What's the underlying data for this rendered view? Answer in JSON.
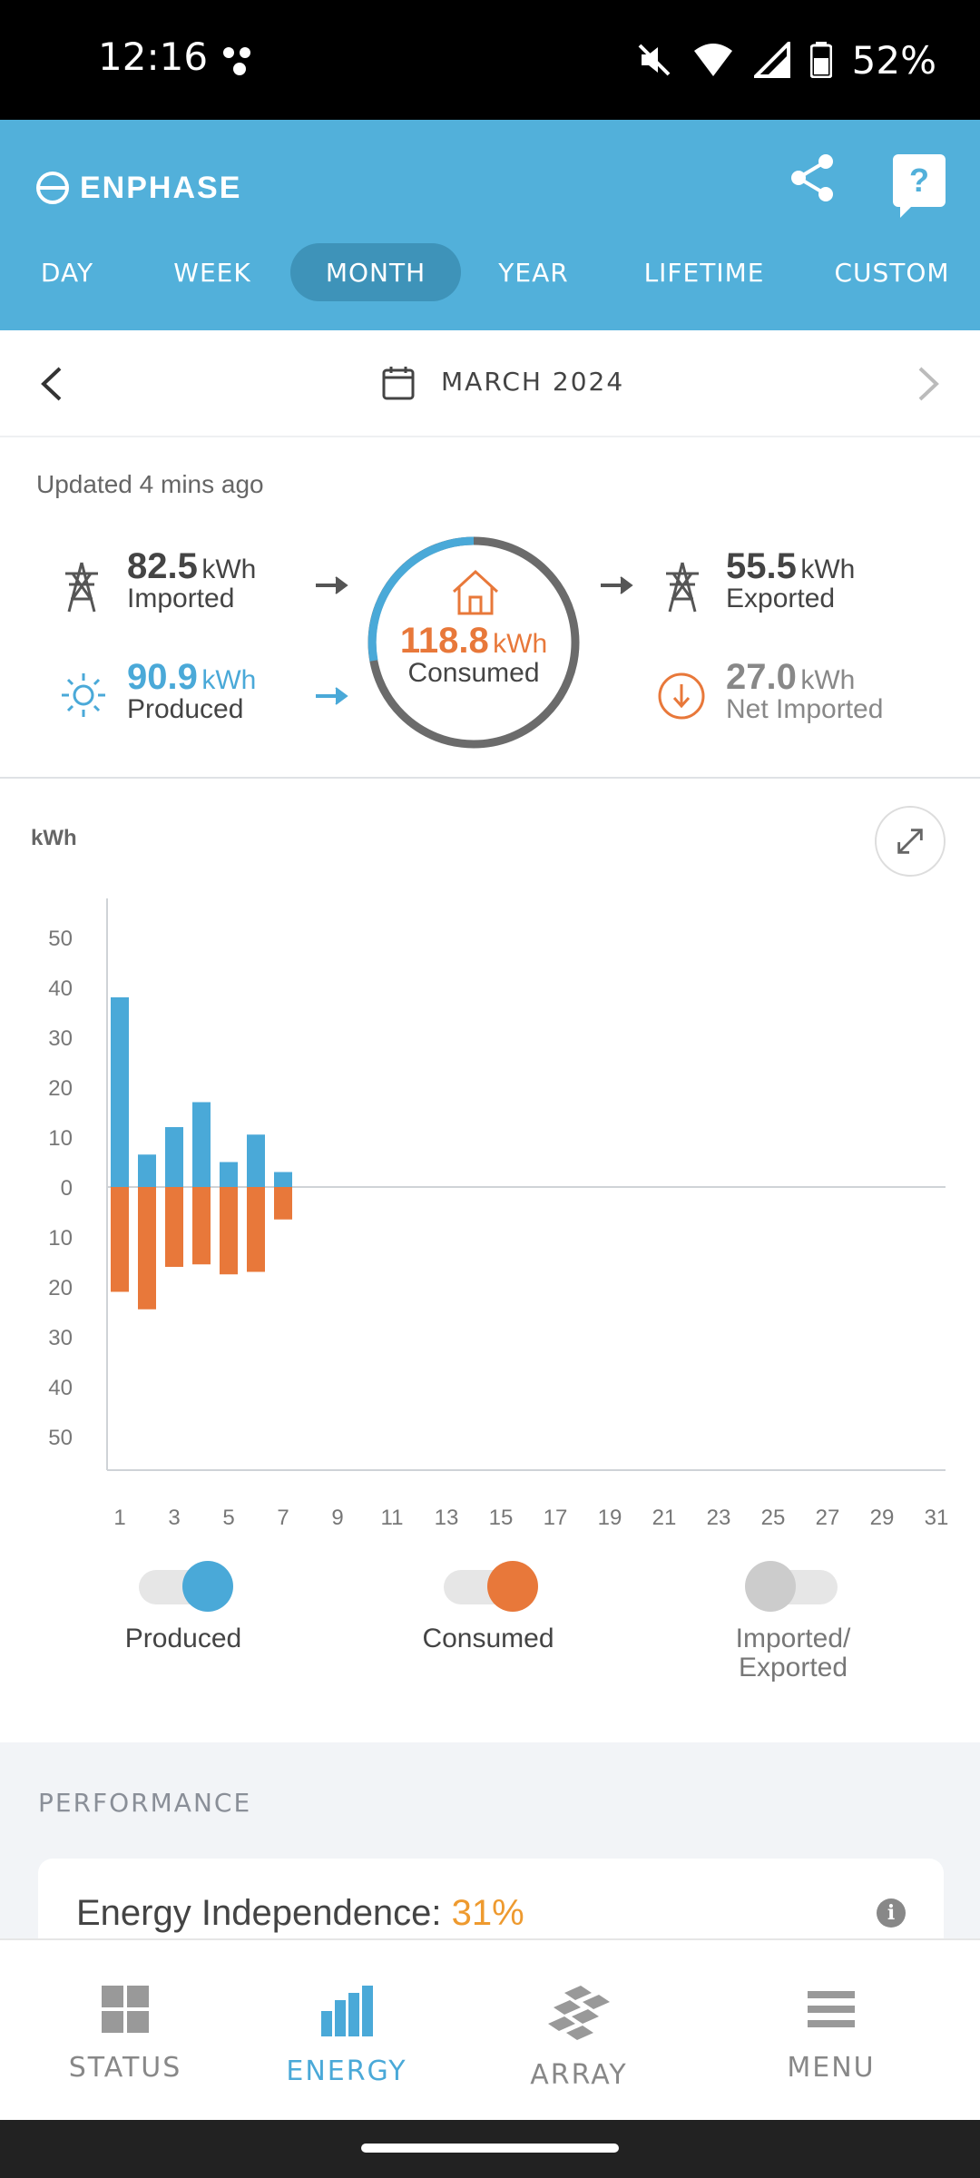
{
  "status_bar": {
    "time": "12:16",
    "battery": "52%"
  },
  "header": {
    "brand": "ENPHASE",
    "tabs": [
      {
        "label": "DAY"
      },
      {
        "label": "WEEK"
      },
      {
        "label": "MONTH",
        "active": true
      },
      {
        "label": "YEAR"
      },
      {
        "label": "LIFETIME"
      },
      {
        "label": "CUSTOM"
      }
    ],
    "help_symbol": "?"
  },
  "period": {
    "label": "MARCH 2024"
  },
  "summary": {
    "updated": "Updated 4 mins ago",
    "imported": {
      "value": "82.5",
      "unit": "kWh",
      "caption": "Imported"
    },
    "produced": {
      "value": "90.9",
      "unit": "kWh",
      "caption": "Produced"
    },
    "consumed": {
      "value": "118.8",
      "unit": "kWh",
      "caption": "Consumed"
    },
    "exported": {
      "value": "55.5",
      "unit": "kWh",
      "caption": "Exported"
    },
    "net_imported": {
      "value": "27.0",
      "unit": "kWh",
      "caption": "Net Imported"
    },
    "colors": {
      "produced": "#4aa9d8",
      "consumed": "#e8783a",
      "ring_gray": "#6b6b6b"
    }
  },
  "chart_data": {
    "type": "bar",
    "ylabel": "kWh",
    "y_ticks_top": [
      "50",
      "40",
      "30",
      "20",
      "10",
      "0"
    ],
    "y_ticks_bottom": [
      "10",
      "20",
      "30",
      "40",
      "50"
    ],
    "ylim": [
      -50,
      50
    ],
    "x_ticks": [
      "1",
      "3",
      "5",
      "7",
      "9",
      "11",
      "13",
      "15",
      "17",
      "19",
      "21",
      "23",
      "25",
      "27",
      "29",
      "31"
    ],
    "days": [
      1,
      2,
      3,
      4,
      5,
      6,
      7
    ],
    "series": [
      {
        "name": "Produced",
        "color": "#4aa9d8",
        "values": [
          38,
          6.5,
          12,
          17,
          5,
          10.5,
          3
        ]
      },
      {
        "name": "Consumed",
        "color": "#e8783a",
        "values": [
          -21,
          -24.5,
          -16,
          -15.5,
          -17.5,
          -17,
          -6.5
        ]
      }
    ]
  },
  "legend": [
    {
      "label": "Produced",
      "on": true,
      "color": "#4aa9d8"
    },
    {
      "label": "Consumed",
      "on": true,
      "color": "#e8783a"
    },
    {
      "label": "Imported/\nExported",
      "on": false,
      "color": "#cccccc"
    }
  ],
  "performance": {
    "title": "PERFORMANCE",
    "energy_independence_label": "Energy Independence:",
    "energy_independence_value": "31%",
    "info_symbol": "i"
  },
  "bottom_nav": [
    {
      "label": "STATUS"
    },
    {
      "label": "ENERGY",
      "active": true
    },
    {
      "label": "ARRAY"
    },
    {
      "label": "MENU"
    }
  ]
}
